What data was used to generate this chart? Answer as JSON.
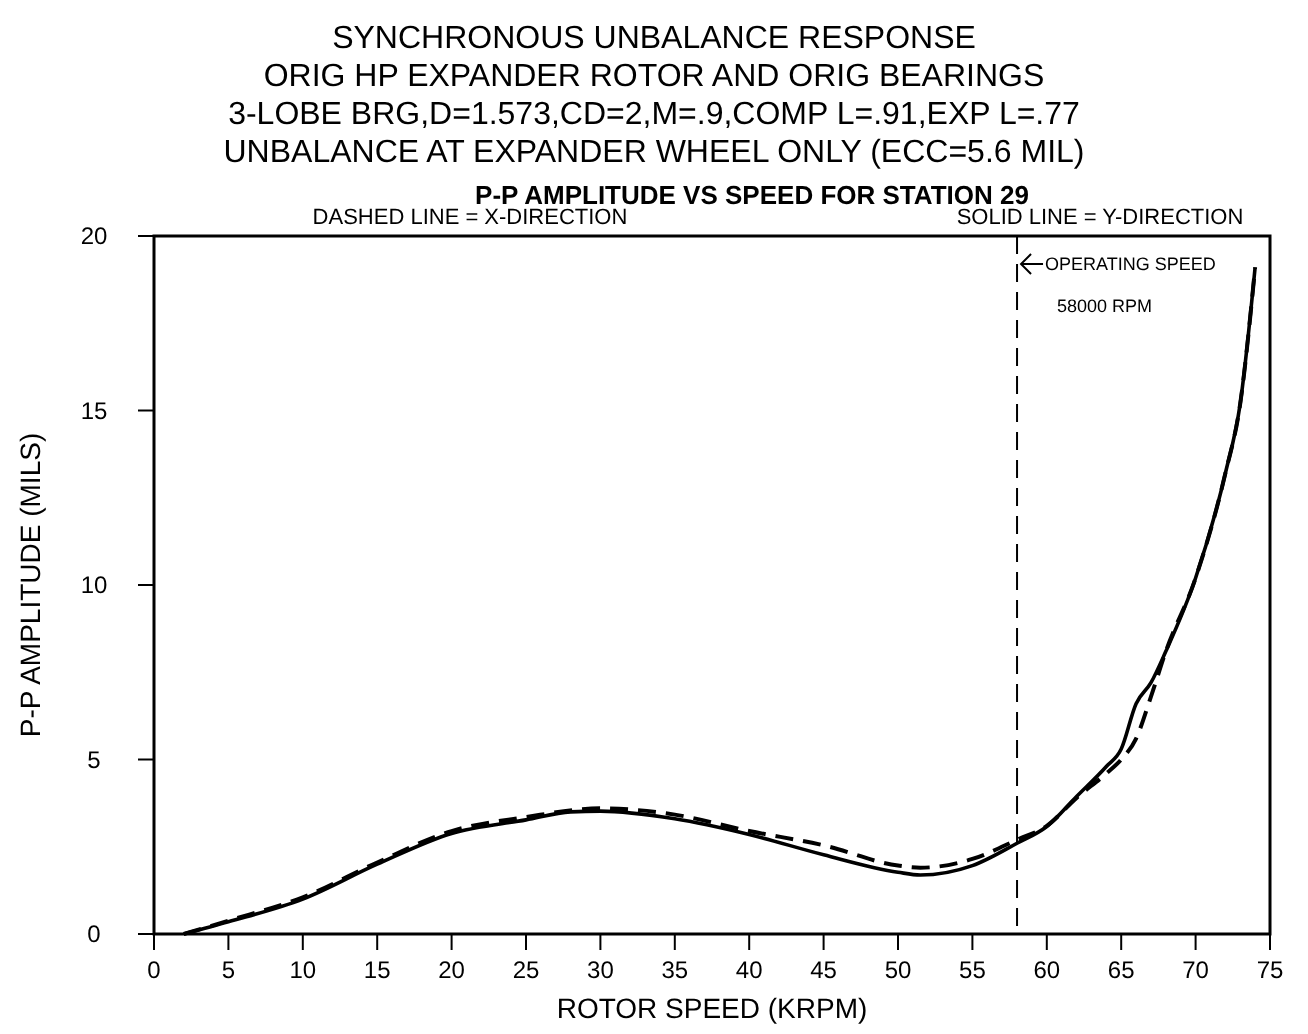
{
  "chart_data": {
    "type": "line",
    "title": "SYNCHRONOUS UNBALANCE RESPONSE\nORIG HP EXPANDER ROTOR AND ORIG BEARINGS\n3-LOBE BRG,D=1.573,CD=2,M=.9,COMP L=.91,EXP L=.77\nUNBALANCE AT EXPANDER WHEEL ONLY (ECC=5.6 MIL)",
    "subtitle": "P-P AMPLITUDE VS SPEED FOR STATION  29",
    "xlabel": "ROTOR SPEED (KRPM)",
    "ylabel": "P-P AMPLITUDE (MILS)",
    "annotations": [
      "DASHED LINE = X-DIRECTION",
      "SOLID LINE = Y-DIRECTION",
      {
        "text": "58000 RPM",
        "x": 58,
        "y": 18
      }
    ],
    "xlim": [
      0,
      75
    ],
    "ylim": [
      0,
      20
    ],
    "xticks": [
      0,
      5,
      10,
      15,
      20,
      25,
      30,
      35,
      40,
      45,
      50,
      55,
      60,
      65,
      70,
      75
    ],
    "yticks": [
      0,
      5,
      10,
      15,
      20
    ],
    "grid": false,
    "ref_lines": [
      {
        "axis": "x",
        "value": 58,
        "label": "OPERATING SPEED",
        "line_style": "dashed"
      }
    ],
    "series": [
      {
        "color": "#000000",
        "line_style": "dashed",
        "x": [
          2,
          5,
          10,
          15,
          20,
          25,
          30,
          35,
          40,
          45,
          50,
          51.5,
          55,
          58,
          60,
          62,
          64,
          65,
          66,
          67,
          68,
          70,
          72,
          73,
          74
        ],
        "values": [
          0,
          0.38,
          1.05,
          2.05,
          2.95,
          3.35,
          3.6,
          3.42,
          2.95,
          2.54,
          1.96,
          1.9,
          2.15,
          2.7,
          3.1,
          3.9,
          4.6,
          5.0,
          5.6,
          6.8,
          8.1,
          10.2,
          13.2,
          15.2,
          19.1
        ]
      },
      {
        "color": "#000000",
        "line_style": "solid",
        "x": [
          2,
          5,
          10,
          15,
          20,
          25,
          28,
          30,
          35,
          40,
          45,
          50,
          51.5,
          55,
          58,
          60,
          62,
          64,
          65,
          66,
          67,
          68,
          70,
          72,
          73,
          74
        ],
        "values": [
          0,
          0.35,
          1.0,
          2.0,
          2.88,
          3.27,
          3.5,
          3.52,
          3.3,
          2.85,
          2.27,
          1.77,
          1.69,
          1.96,
          2.6,
          3.08,
          3.94,
          4.8,
          5.3,
          6.6,
          7.2,
          8.1,
          10.2,
          13.2,
          15.2,
          19.1
        ]
      }
    ]
  }
}
